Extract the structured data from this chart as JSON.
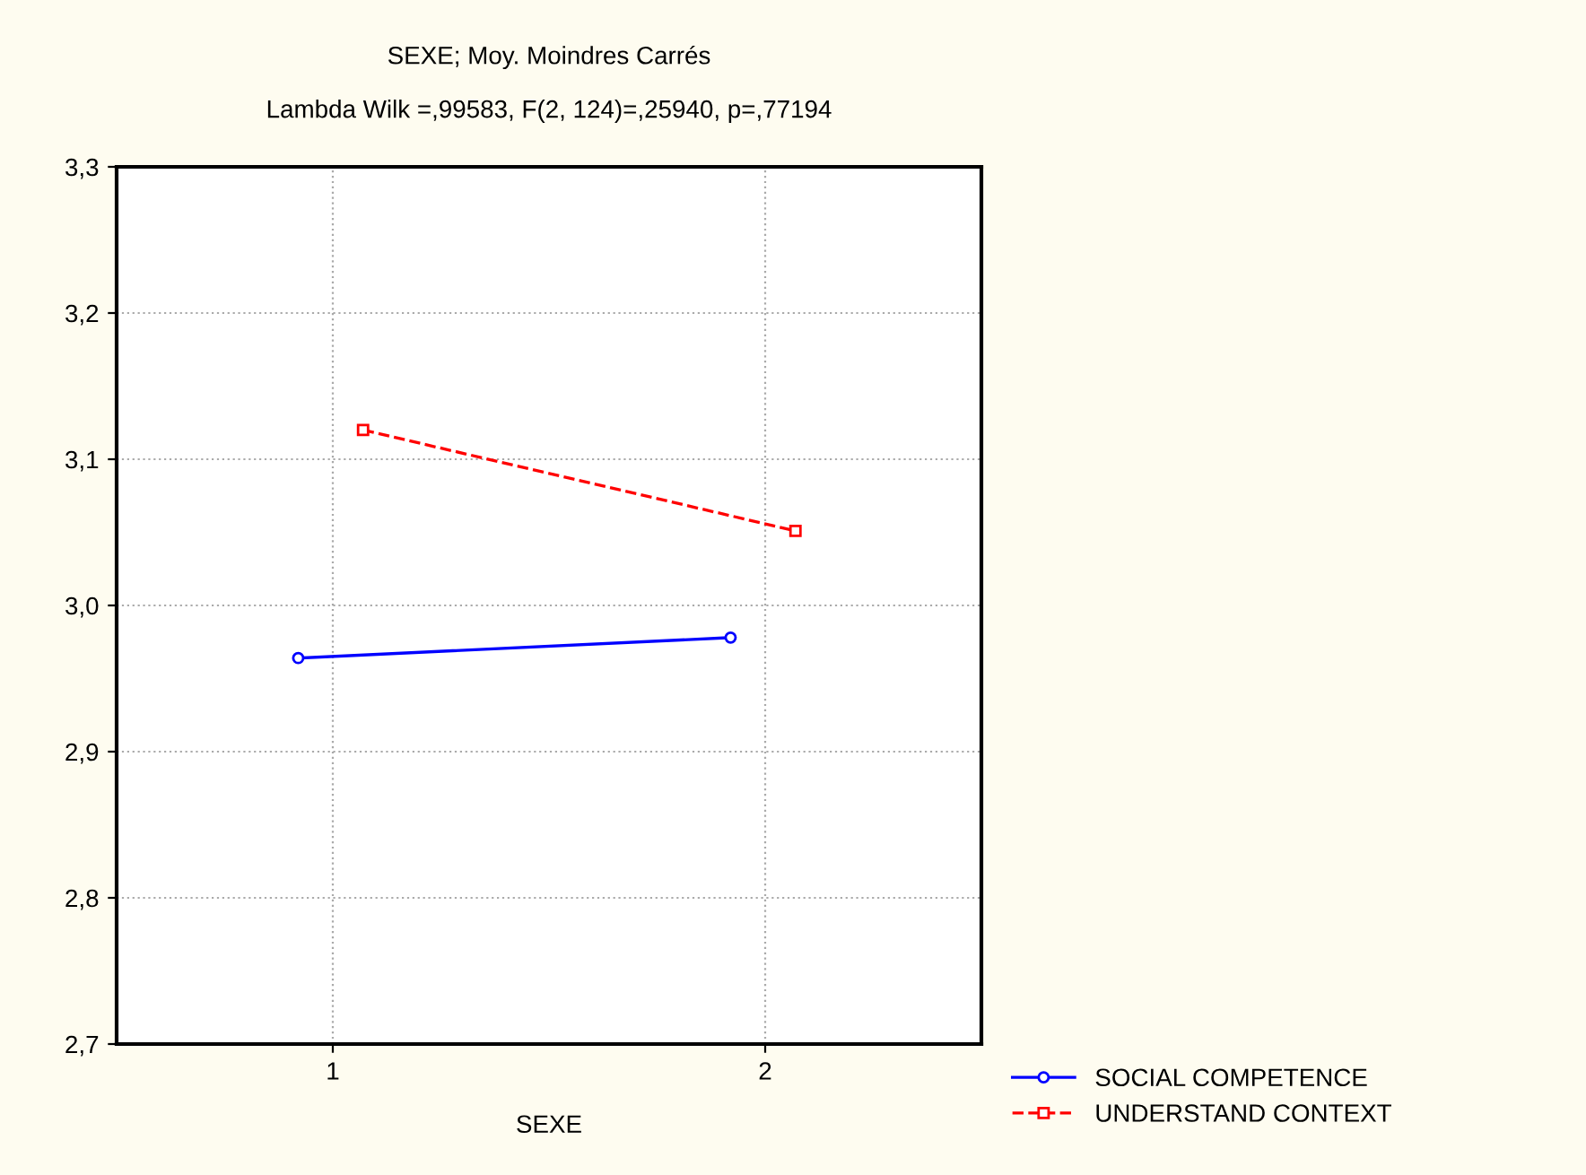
{
  "chart_data": {
    "type": "line",
    "title": "SEXE; Moy. Moindres Carrés",
    "subtitle": "Lambda Wilk =,99583, F(2, 124)=,25940, p=,77194",
    "xlabel": "SEXE",
    "xlim": [
      0.5,
      2.5
    ],
    "xticks": [
      1,
      2
    ],
    "ylim": [
      2.7,
      3.3
    ],
    "yticks": [
      {
        "value": 2.7,
        "label": "2,7"
      },
      {
        "value": 2.8,
        "label": "2,8"
      },
      {
        "value": 2.9,
        "label": "2,9"
      },
      {
        "value": 3.0,
        "label": "3,0"
      },
      {
        "value": 3.1,
        "label": "3,1"
      },
      {
        "value": 3.2,
        "label": "3,2"
      },
      {
        "value": 3.3,
        "label": "3,3"
      }
    ],
    "grid": true,
    "legend": "bottom right",
    "series": [
      {
        "name": "SOCIAL COMPETENCE",
        "color": "#0000ff",
        "x": [
          0.92,
          1.92
        ],
        "values": [
          2.964,
          2.978
        ],
        "marker": "circle",
        "line_style": "solid"
      },
      {
        "name": "UNDERSTAND CONTEXT",
        "color": "#ff0000",
        "x": [
          1.07,
          2.07
        ],
        "values": [
          3.12,
          3.051
        ],
        "marker": "square",
        "line_style": "dashed"
      }
    ]
  }
}
